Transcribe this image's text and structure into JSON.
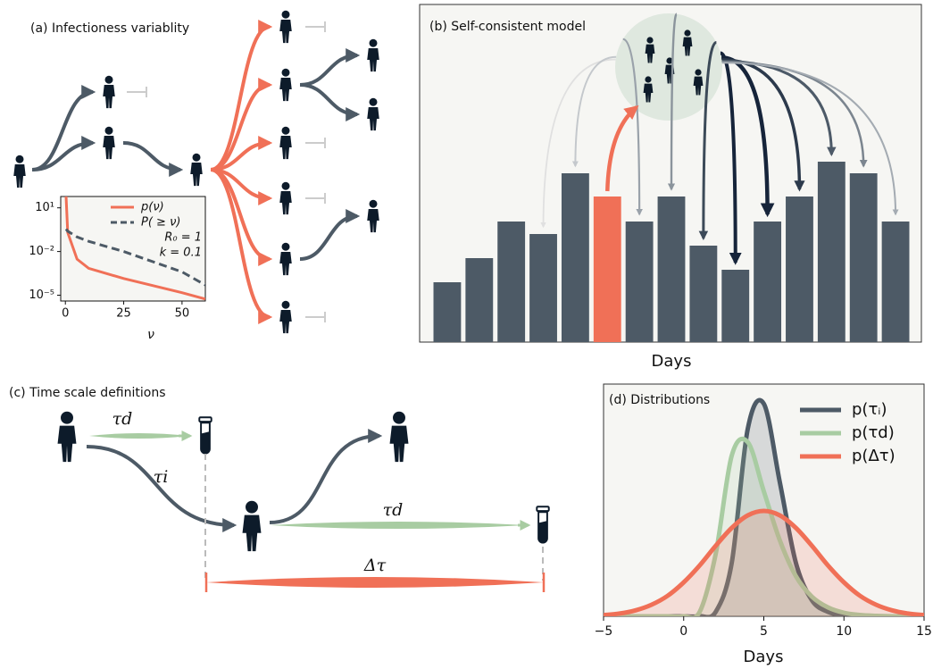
{
  "chart_data": [
    {
      "type": "line",
      "log_y": true,
      "xlabel": "ν",
      "x": [
        0.3,
        1,
        5,
        10,
        25,
        50,
        60
      ],
      "series": [
        {
          "name": "p(ν)",
          "color": "#f07057",
          "dash": false,
          "values": [
            60,
            0.2,
            0.003,
            0.0007,
            0.00014,
            1.5e-05,
            5.5e-06
          ]
        },
        {
          "name": "P( ≥ ν)",
          "color": "#4d5a66",
          "dash": true,
          "values": [
            0.35,
            0.25,
            0.1,
            0.05,
            0.01,
            0.0004,
            5e-05
          ]
        }
      ],
      "annotations": [
        "R₀ = 1",
        "k = 0.1"
      ],
      "xlim": [
        -2,
        60
      ],
      "xticks": [
        0,
        25,
        50
      ],
      "ylim": [
        4e-06,
        60
      ],
      "yticks": [
        {
          "value": 10,
          "label": "10¹"
        },
        {
          "value": 0.01,
          "label": "10⁻²"
        },
        {
          "value": 1e-05,
          "label": "10⁻⁵"
        }
      ],
      "legend": "upper right"
    },
    {
      "type": "bar",
      "title": "(b) Self-consistent model",
      "xlabel": "Days",
      "values": [
        67,
        94,
        135,
        121,
        189,
        163,
        135,
        163,
        108,
        81,
        135,
        163,
        202,
        189,
        135
      ],
      "colors": [
        "#4d5a66",
        "#4d5a66",
        "#4d5a66",
        "#4d5a66",
        "#4d5a66",
        "#f07057",
        "#4d5a66",
        "#4d5a66",
        "#4d5a66",
        "#4d5a66",
        "#4d5a66",
        "#4d5a66",
        "#4d5a66",
        "#4d5a66",
        "#4d5a66"
      ],
      "ylim": [
        0,
        378
      ]
    },
    {
      "type": "density",
      "title": "(d) Distributions",
      "xlabel": "Days",
      "x": [
        -5,
        -4,
        -3,
        -2,
        -1,
        0,
        1,
        2,
        3,
        4,
        5,
        6,
        7,
        8,
        9,
        10,
        11,
        12,
        13,
        14,
        15
      ],
      "series": [
        {
          "name": "p(τᵢ)",
          "color": "#4d5a66",
          "values": [
            0,
            0,
            0,
            0,
            0,
            0,
            0,
            5,
            60,
            210,
            238,
            150,
            60,
            18,
            5,
            1,
            0,
            0,
            0,
            0,
            0
          ]
        },
        {
          "name": "p(τd)",
          "color": "#a8cca2",
          "values": [
            0,
            0,
            0,
            0,
            0,
            0,
            5,
            70,
            180,
            195,
            140,
            85,
            45,
            22,
            10,
            4,
            1.5,
            0.5,
            0,
            0,
            0
          ]
        },
        {
          "name": "p(Δτ)",
          "color": "#f07057",
          "values": [
            1.3,
            3.1,
            6.7,
            13,
            23,
            38,
            57,
            79,
            99,
            113,
            118,
            113,
            99,
            79,
            57,
            38,
            23,
            13,
            6.7,
            3.1,
            1.3
          ]
        }
      ],
      "xlim": [
        -5,
        15
      ],
      "xticks": [
        {
          "value": -5,
          "label": "−5"
        },
        0,
        5,
        10,
        15
      ],
      "ylim": [
        0,
        260
      ],
      "legend": "upper right"
    }
  ],
  "diagrams": {
    "a": {
      "title": "(a) Infectioness variablity"
    },
    "c": {
      "title": "(c) Time scale definitions",
      "labels": [
        "τd",
        "τi",
        "τd",
        "Δτ"
      ]
    }
  }
}
